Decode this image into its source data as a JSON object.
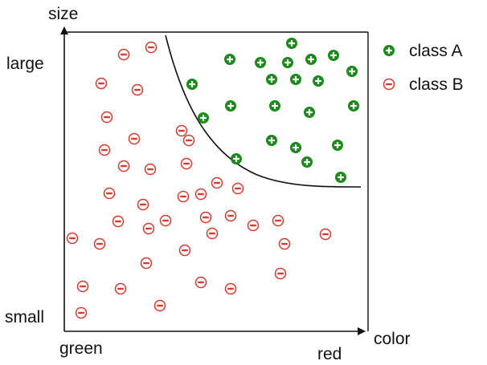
{
  "axis_labels": {
    "y_title": "size",
    "y_high": "large",
    "y_low": "small",
    "x_title": "color",
    "x_low": "green",
    "x_high": "red"
  },
  "legend": {
    "class_a": "class A",
    "class_b": "class B"
  },
  "colors": {
    "class_a": "#1a8a1a",
    "class_b": "#d63a2f",
    "boundary": "#111111",
    "frame": "#111111"
  },
  "class_a_points": [
    [
      363,
      54
    ],
    [
      286,
      74
    ],
    [
      324,
      78
    ],
    [
      358,
      78
    ],
    [
      387,
      74
    ],
    [
      415,
      69
    ],
    [
      239,
      105
    ],
    [
      338,
      99
    ],
    [
      368,
      99
    ],
    [
      396,
      101
    ],
    [
      438,
      89
    ],
    [
      287,
      132
    ],
    [
      342,
      132
    ],
    [
      385,
      140
    ],
    [
      440,
      132
    ],
    [
      253,
      147
    ],
    [
      338,
      175
    ],
    [
      368,
      184
    ],
    [
      420,
      181
    ],
    [
      294,
      198
    ],
    [
      382,
      202
    ],
    [
      424,
      221
    ]
  ],
  "class_b_points": [
    [
      188,
      59
    ],
    [
      154,
      68
    ],
    [
      126,
      104
    ],
    [
      171,
      112
    ],
    [
      133,
      146
    ],
    [
      226,
      163
    ],
    [
      167,
      173
    ],
    [
      130,
      187
    ],
    [
      235,
      175
    ],
    [
      154,
      207
    ],
    [
      187,
      211
    ],
    [
      232,
      204
    ],
    [
      136,
      241
    ],
    [
      178,
      255
    ],
    [
      228,
      245
    ],
    [
      250,
      242
    ],
    [
      270,
      228
    ],
    [
      296,
      235
    ],
    [
      147,
      276
    ],
    [
      185,
      285
    ],
    [
      206,
      275
    ],
    [
      256,
      271
    ],
    [
      287,
      269
    ],
    [
      315,
      281
    ],
    [
      346,
      275
    ],
    [
      90,
      297
    ],
    [
      124,
      304
    ],
    [
      264,
      291
    ],
    [
      230,
      312
    ],
    [
      354,
      304
    ],
    [
      405,
      292
    ],
    [
      182,
      328
    ],
    [
      349,
      341
    ],
    [
      103,
      357
    ],
    [
      150,
      360
    ],
    [
      250,
      352
    ],
    [
      287,
      360
    ],
    [
      199,
      381
    ],
    [
      101,
      390
    ]
  ]
}
